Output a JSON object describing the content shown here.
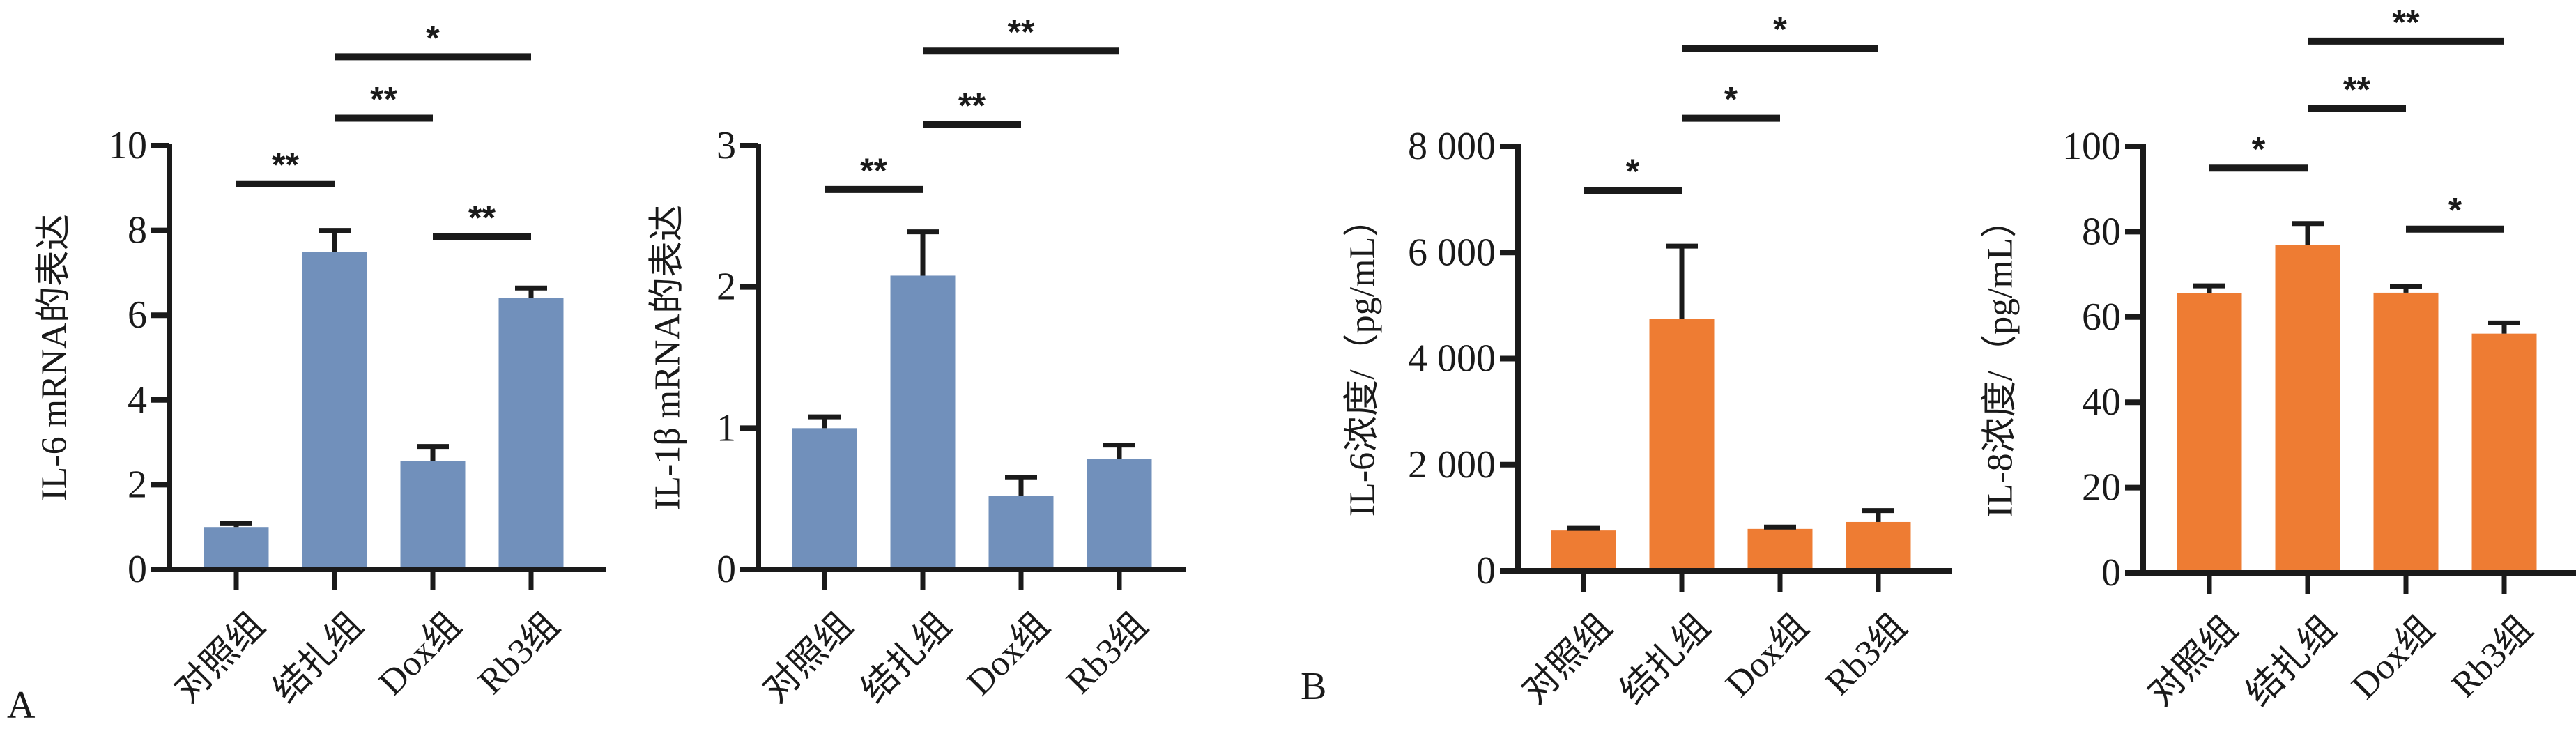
{
  "figure": {
    "panel_letters": [
      "A",
      "B"
    ],
    "colors": {
      "blue_bars": "#7190bb",
      "orange_bars": "#ee7c33",
      "axis": "#1a1a1a"
    }
  },
  "chart_data": [
    {
      "type": "bar",
      "panel": "A",
      "ylabel": "IL-6 mRNA的表达",
      "xlabel": "",
      "title": "",
      "categories": [
        "对照组",
        "结扎组",
        "Dox组",
        "Rb3组"
      ],
      "values": [
        1.0,
        7.5,
        2.55,
        6.4
      ],
      "error_upper": [
        1.08,
        8.0,
        2.9,
        6.64
      ],
      "ylim": [
        0,
        10
      ],
      "yticks": [
        0,
        2,
        4,
        6,
        8,
        10
      ],
      "ytick_labels": [
        "0",
        "2",
        "4",
        "6",
        "8",
        "10"
      ],
      "color": "#7190bb",
      "grid": false,
      "significance": [
        {
          "from": 0,
          "to": 1,
          "label": "**",
          "level": 9.1
        },
        {
          "from": 1,
          "to": 2,
          "label": "**",
          "level": 10.65
        },
        {
          "from": 1,
          "to": 3,
          "label": "*",
          "level": 12.1
        },
        {
          "from": 2,
          "to": 3,
          "label": "**",
          "level": 7.85
        }
      ]
    },
    {
      "type": "bar",
      "panel": "A",
      "ylabel": "IL-1β mRNA的表达",
      "xlabel": "",
      "title": "",
      "categories": [
        "对照组",
        "结扎组",
        "Dox组",
        "Rb3组"
      ],
      "values": [
        1.0,
        2.08,
        0.52,
        0.78
      ],
      "error_upper": [
        1.08,
        2.39,
        0.65,
        0.88
      ],
      "ylim": [
        0,
        3
      ],
      "yticks": [
        0,
        1,
        2,
        3
      ],
      "ytick_labels": [
        "0",
        "1",
        "2",
        "3"
      ],
      "color": "#7190bb",
      "grid": false,
      "significance": [
        {
          "from": 0,
          "to": 1,
          "label": "**",
          "level": 2.69
        },
        {
          "from": 1,
          "to": 2,
          "label": "**",
          "level": 3.15
        },
        {
          "from": 1,
          "to": 3,
          "label": "**",
          "level": 3.67
        }
      ]
    },
    {
      "type": "bar",
      "panel": "B",
      "ylabel": "IL-6浓度/（pg/mL）",
      "xlabel": "",
      "title": "",
      "categories": [
        "对照组",
        "结扎组",
        "Dox组",
        "Rb3组"
      ],
      "values": [
        760,
        4750,
        790,
        920
      ],
      "error_upper": [
        800,
        6120,
        825,
        1135
      ],
      "ylim": [
        0,
        8000
      ],
      "yticks": [
        0,
        2000,
        4000,
        6000,
        8000
      ],
      "ytick_labels": [
        "0",
        "2 000",
        "4 000",
        "6 000",
        "8 000"
      ],
      "color": "#ee7c33",
      "grid": false,
      "significance": [
        {
          "from": 0,
          "to": 1,
          "label": "*",
          "level": 7170
        },
        {
          "from": 1,
          "to": 2,
          "label": "*",
          "level": 8530
        },
        {
          "from": 1,
          "to": 3,
          "label": "*",
          "level": 9850
        }
      ]
    },
    {
      "type": "bar",
      "panel": "B",
      "ylabel": "IL-8浓度/（pg/mL）",
      "xlabel": "",
      "title": "",
      "categories": [
        "对照组",
        "结扎组",
        "Dox组",
        "Rb3组"
      ],
      "values": [
        65.6,
        76.9,
        65.7,
        56.1
      ],
      "error_upper": [
        67.3,
        81.9,
        67.1,
        58.6
      ],
      "ylim": [
        0,
        100
      ],
      "yticks": [
        0,
        20,
        40,
        60,
        80,
        100
      ],
      "ytick_labels": [
        "0",
        "20",
        "40",
        "60",
        "80",
        "100"
      ],
      "color": "#ee7c33",
      "grid": false,
      "significance": [
        {
          "from": 0,
          "to": 1,
          "label": "*",
          "level": 94.9
        },
        {
          "from": 1,
          "to": 2,
          "label": "**",
          "level": 108.9
        },
        {
          "from": 1,
          "to": 3,
          "label": "**",
          "level": 124.7
        },
        {
          "from": 2,
          "to": 3,
          "label": "*",
          "level": 80.6
        }
      ]
    }
  ]
}
